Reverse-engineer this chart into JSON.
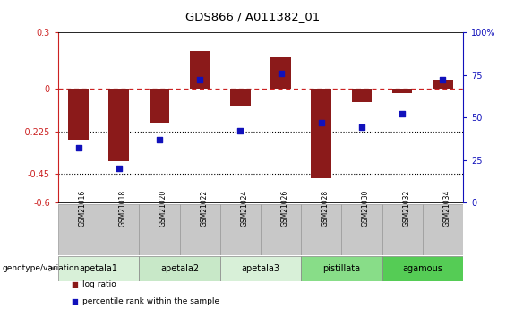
{
  "title": "GDS866 / A011382_01",
  "samples": [
    "GSM21016",
    "GSM21018",
    "GSM21020",
    "GSM21022",
    "GSM21024",
    "GSM21026",
    "GSM21028",
    "GSM21030",
    "GSM21032",
    "GSM21034"
  ],
  "log_ratio": [
    -0.27,
    -0.38,
    -0.18,
    0.2,
    -0.09,
    0.17,
    -0.47,
    -0.07,
    -0.02,
    0.05
  ],
  "percentile_rank": [
    32,
    20,
    37,
    72,
    42,
    76,
    47,
    44,
    52,
    72
  ],
  "groups": [
    {
      "label": "apetala1",
      "start": 0,
      "end": 2,
      "color": "#d8f0d8"
    },
    {
      "label": "apetala2",
      "start": 2,
      "end": 4,
      "color": "#c8e8c8"
    },
    {
      "label": "apetala3",
      "start": 4,
      "end": 6,
      "color": "#d8f0d8"
    },
    {
      "label": "pistillata",
      "start": 6,
      "end": 8,
      "color": "#88dd88"
    },
    {
      "label": "agamous",
      "start": 8,
      "end": 10,
      "color": "#55cc55"
    }
  ],
  "ylim_left": [
    -0.6,
    0.3
  ],
  "ylim_right": [
    0,
    100
  ],
  "yticks_left": [
    0.3,
    0,
    -0.225,
    -0.45,
    -0.6
  ],
  "ytick_labels_left": [
    "0.3",
    "0",
    "-0.225",
    "-0.45",
    "-0.6"
  ],
  "yticks_right": [
    100,
    75,
    50,
    25,
    0
  ],
  "ytick_labels_right": [
    "100%",
    "75",
    "50",
    "25",
    "0"
  ],
  "hlines": [
    -0.225,
    -0.45
  ],
  "bar_color": "#8B1A1A",
  "dot_color": "#1111BB",
  "bar_width": 0.5,
  "dot_size": 18,
  "legend_items": [
    "log ratio",
    "percentile rank within the sample"
  ],
  "legend_colors": [
    "#8B1A1A",
    "#1111BB"
  ],
  "group_label": "genotype/variation",
  "sample_box_color": "#c8c8c8",
  "sample_box_border": "#999999"
}
